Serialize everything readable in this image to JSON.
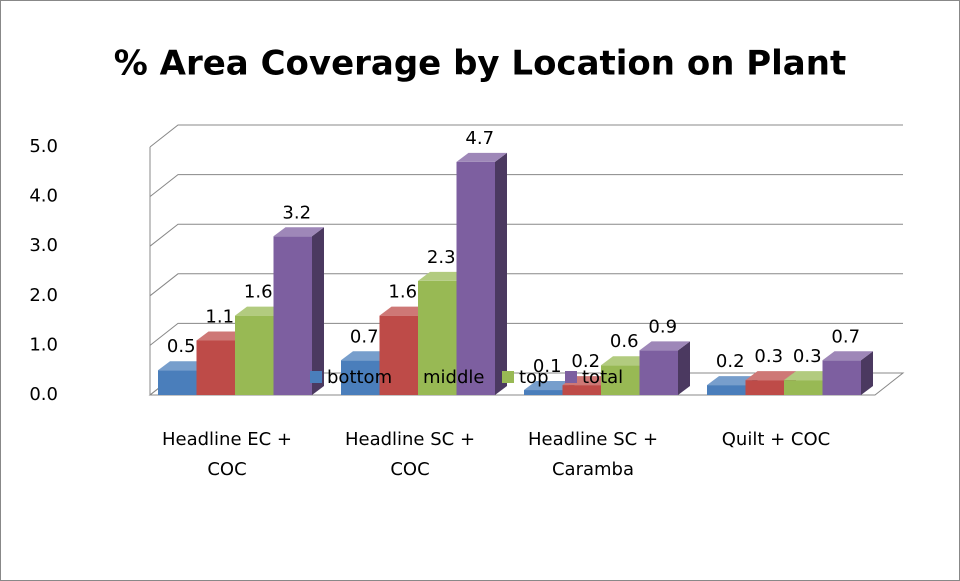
{
  "chart_data": {
    "type": "bar3d",
    "title": "% Area Coverage by Location on Plant",
    "categories": [
      "Headline EC + COC",
      "Headline SC + COC",
      "Headline SC + Caramba",
      "Quilt + COC"
    ],
    "series": [
      {
        "name": "bottom",
        "color": "#4a7ebb",
        "values": [
          0.5,
          0.7,
          0.1,
          0.2
        ]
      },
      {
        "name": "middle",
        "color": "#be4b48",
        "values": [
          1.1,
          1.6,
          0.2,
          0.3
        ]
      },
      {
        "name": "top",
        "color": "#98b954",
        "values": [
          1.6,
          2.3,
          0.6,
          0.3
        ]
      },
      {
        "name": "total",
        "color": "#7d5fa0",
        "values": [
          3.2,
          4.7,
          0.9,
          0.7
        ]
      }
    ],
    "ylim": [
      0,
      5
    ],
    "yticks": [
      {
        "value": 0,
        "label": "0.0"
      },
      {
        "value": 1,
        "label": "1.0"
      },
      {
        "value": 2,
        "label": "2.0"
      },
      {
        "value": 3,
        "label": "3.0"
      },
      {
        "value": 4,
        "label": "4.0"
      },
      {
        "value": 5,
        "label": "5.0"
      }
    ],
    "grid": true,
    "legend": "bottom"
  }
}
